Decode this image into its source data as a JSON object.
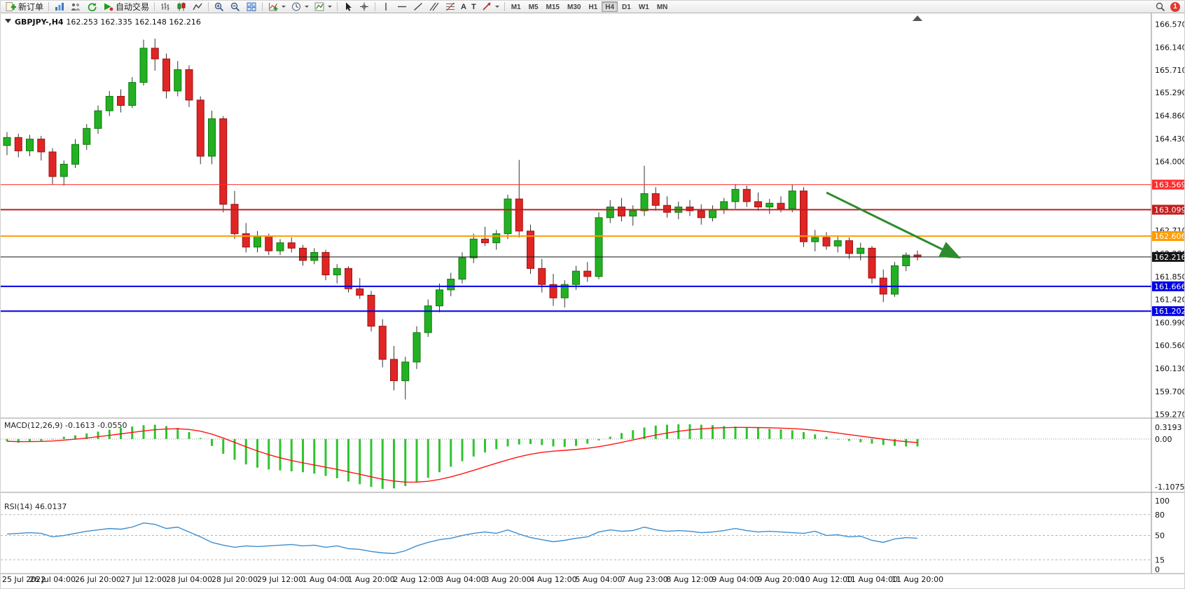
{
  "toolbar": {
    "new_order": "新订单",
    "autotrading": "自动交易",
    "text_tool": "A",
    "label_tool": "T",
    "timeframes": [
      "M1",
      "M5",
      "M15",
      "M30",
      "H1",
      "H4",
      "D1",
      "W1",
      "MN"
    ],
    "active_timeframe": "H4",
    "notification_count": "1"
  },
  "chart": {
    "symbol_tf": "GBPJPY-,H4",
    "ohlc": "162.253 162.335 162.148 162.216",
    "open": "162.253",
    "high": "162.335",
    "low": "162.148",
    "close": "162.216"
  },
  "chart_data": {
    "type": "candlestick",
    "symbol": "GBPJPY-",
    "timeframe": "H4",
    "title": "GBPJPY-,H4 162.253 162.335 162.148 162.216",
    "grid": false,
    "bull_color": "#23b123",
    "bear_color": "#e02525",
    "wick_color": "#333333",
    "candles_per_label": 4,
    "time_labels": [
      "25 Jul 2022",
      "26 Jul 04:00",
      "26 Jul 20:00",
      "27 Jul 12:00",
      "28 Jul 04:00",
      "28 Jul 20:00",
      "29 Jul 12:00",
      "1 Aug 04:00",
      "1 Aug 20:00",
      "2 Aug 12:00",
      "3 Aug 04:00",
      "3 Aug 20:00",
      "4 Aug 12:00",
      "5 Aug 04:00",
      "7 Aug 23:00",
      "8 Aug 12:00",
      "9 Aug 04:00",
      "9 Aug 20:00",
      "10 Aug 12:00",
      "11 Aug 04:00",
      "11 Aug 20:00"
    ],
    "price_axis": {
      "max": 166.57,
      "min": 159.27,
      "step": 0.43,
      "tick_labels": [
        "166.570",
        "166.140",
        "165.710",
        "165.290",
        "164.860",
        "164.430",
        "164.000",
        "163.570",
        "163.140",
        "162.710",
        "162.280",
        "161.850",
        "161.420",
        "160.990",
        "160.560",
        "160.130",
        "159.700",
        "159.270"
      ]
    },
    "candles": [
      [
        164.3,
        164.55,
        164.12,
        164.45
      ],
      [
        164.45,
        164.52,
        164.08,
        164.2
      ],
      [
        164.2,
        164.5,
        164.1,
        164.42
      ],
      [
        164.42,
        164.48,
        164.02,
        164.18
      ],
      [
        164.18,
        164.25,
        163.57,
        163.72
      ],
      [
        163.72,
        164.02,
        163.55,
        163.95
      ],
      [
        163.95,
        164.42,
        163.88,
        164.32
      ],
      [
        164.32,
        164.7,
        164.22,
        164.62
      ],
      [
        164.62,
        165.05,
        164.52,
        164.95
      ],
      [
        164.95,
        165.32,
        164.85,
        165.22
      ],
      [
        165.22,
        165.35,
        164.92,
        165.05
      ],
      [
        165.05,
        165.58,
        165.0,
        165.48
      ],
      [
        165.48,
        166.28,
        165.42,
        166.12
      ],
      [
        166.12,
        166.3,
        165.7,
        165.92
      ],
      [
        165.92,
        166.02,
        165.18,
        165.32
      ],
      [
        165.32,
        165.88,
        165.22,
        165.72
      ],
      [
        165.72,
        165.8,
        165.02,
        165.15
      ],
      [
        165.15,
        165.22,
        163.95,
        164.1
      ],
      [
        164.1,
        164.95,
        163.95,
        164.8
      ],
      [
        164.8,
        164.85,
        163.05,
        163.2
      ],
      [
        163.2,
        163.45,
        162.55,
        162.65
      ],
      [
        162.65,
        162.85,
        162.3,
        162.4
      ],
      [
        162.4,
        162.7,
        162.3,
        162.6
      ],
      [
        162.6,
        162.65,
        162.25,
        162.33
      ],
      [
        162.33,
        162.55,
        162.25,
        162.48
      ],
      [
        162.48,
        162.58,
        162.3,
        162.38
      ],
      [
        162.38,
        162.44,
        162.05,
        162.15
      ],
      [
        162.15,
        162.38,
        162.08,
        162.3
      ],
      [
        162.3,
        162.35,
        161.78,
        161.88
      ],
      [
        161.88,
        162.08,
        161.72,
        162.0
      ],
      [
        162.0,
        162.04,
        161.55,
        161.62
      ],
      [
        161.62,
        161.82,
        161.43,
        161.5
      ],
      [
        161.5,
        161.58,
        160.82,
        160.92
      ],
      [
        160.92,
        161.05,
        160.15,
        160.3
      ],
      [
        160.3,
        160.55,
        159.72,
        159.9
      ],
      [
        159.9,
        160.35,
        159.55,
        160.25
      ],
      [
        160.25,
        160.92,
        160.12,
        160.8
      ],
      [
        160.8,
        161.42,
        160.72,
        161.3
      ],
      [
        161.3,
        161.72,
        161.18,
        161.6
      ],
      [
        161.6,
        161.92,
        161.48,
        161.8
      ],
      [
        161.8,
        162.3,
        161.72,
        162.2
      ],
      [
        162.2,
        162.65,
        162.1,
        162.55
      ],
      [
        162.55,
        162.78,
        162.42,
        162.48
      ],
      [
        162.48,
        162.72,
        162.35,
        162.65
      ],
      [
        162.65,
        163.38,
        162.55,
        163.3
      ],
      [
        163.3,
        164.03,
        162.58,
        162.7
      ],
      [
        162.7,
        162.82,
        161.9,
        162.0
      ],
      [
        162.0,
        162.18,
        161.55,
        161.7
      ],
      [
        161.7,
        161.9,
        161.3,
        161.45
      ],
      [
        161.45,
        161.78,
        161.27,
        161.7
      ],
      [
        161.7,
        162.05,
        161.6,
        161.95
      ],
      [
        161.95,
        162.12,
        161.75,
        161.85
      ],
      [
        161.85,
        163.05,
        161.8,
        162.95
      ],
      [
        162.95,
        163.28,
        162.85,
        163.15
      ],
      [
        163.15,
        163.32,
        162.88,
        162.98
      ],
      [
        162.98,
        163.18,
        162.8,
        163.08
      ],
      [
        163.08,
        163.92,
        162.98,
        163.4
      ],
      [
        163.4,
        163.52,
        163.08,
        163.18
      ],
      [
        163.18,
        163.35,
        162.95,
        163.05
      ],
      [
        163.05,
        163.25,
        162.92,
        163.15
      ],
      [
        163.15,
        163.28,
        162.98,
        163.08
      ],
      [
        163.08,
        163.2,
        162.82,
        162.95
      ],
      [
        162.95,
        163.18,
        162.88,
        163.1
      ],
      [
        163.1,
        163.32,
        163.02,
        163.25
      ],
      [
        163.25,
        163.58,
        163.12,
        163.48
      ],
      [
        163.48,
        163.55,
        163.15,
        163.25
      ],
      [
        163.25,
        163.42,
        163.08,
        163.15
      ],
      [
        163.15,
        163.3,
        163.02,
        163.22
      ],
      [
        163.22,
        163.35,
        163.05,
        163.12
      ],
      [
        163.12,
        163.57,
        163.05,
        163.45
      ],
      [
        163.45,
        163.52,
        162.4,
        162.5
      ],
      [
        162.5,
        162.72,
        162.32,
        162.58
      ],
      [
        162.58,
        162.68,
        162.35,
        162.42
      ],
      [
        162.42,
        162.62,
        162.3,
        162.52
      ],
      [
        162.52,
        162.58,
        162.18,
        162.28
      ],
      [
        162.28,
        162.48,
        162.15,
        162.38
      ],
      [
        162.38,
        162.42,
        161.72,
        161.82
      ],
      [
        161.82,
        161.98,
        161.37,
        161.52
      ],
      [
        161.52,
        162.12,
        161.47,
        162.05
      ],
      [
        162.05,
        162.3,
        161.95,
        162.25
      ],
      [
        162.253,
        162.335,
        162.148,
        162.216
      ]
    ],
    "hlines": [
      {
        "price": 163.569,
        "label": "163.569",
        "color": "#ff2d2d",
        "width": 1
      },
      {
        "price": 163.099,
        "label": "163.099",
        "color": "#c21d1d",
        "width": 2
      },
      {
        "price": 162.606,
        "label": "162.606",
        "color": "#ff9c00",
        "width": 2
      },
      {
        "price": 162.216,
        "label": "162.216",
        "color": "#151515",
        "width": 1
      },
      {
        "price": 161.666,
        "label": "161.666",
        "color": "#0000e6",
        "width": 2
      },
      {
        "price": 161.202,
        "label": "161.202",
        "color": "#0000e6",
        "width": 2
      }
    ],
    "trend_arrow": {
      "from_candle": 72,
      "from_price": 163.42,
      "to_candle": 83.5,
      "to_price": 162.22,
      "color": "#2e8b2e"
    },
    "macd": {
      "label": "MACD(12,26,9)",
      "main_value": "-0.1613",
      "signal_value": "-0.0550",
      "axis_labels": [
        "0.3193",
        "0.00",
        "-1.1075"
      ],
      "axis_max": 0.3193,
      "axis_min": -1.1075,
      "histogram_color": "#2fc42f",
      "signal_color": "#ff1414",
      "values": [
        -0.05,
        -0.08,
        -0.06,
        -0.04,
        0.0,
        0.05,
        0.08,
        0.12,
        0.16,
        0.2,
        0.24,
        0.27,
        0.3,
        0.31,
        0.28,
        0.24,
        0.15,
        0.02,
        -0.15,
        -0.32,
        -0.45,
        -0.55,
        -0.62,
        -0.66,
        -0.68,
        -0.7,
        -0.72,
        -0.75,
        -0.8,
        -0.85,
        -0.92,
        -0.98,
        -1.04,
        -1.08,
        -1.07,
        -1.02,
        -0.94,
        -0.84,
        -0.72,
        -0.6,
        -0.48,
        -0.38,
        -0.29,
        -0.22,
        -0.16,
        -0.12,
        -0.11,
        -0.13,
        -0.16,
        -0.17,
        -0.15,
        -0.1,
        -0.03,
        0.05,
        0.13,
        0.19,
        0.25,
        0.29,
        0.31,
        0.32,
        0.32,
        0.31,
        0.3,
        0.28,
        0.27,
        0.25,
        0.24,
        0.22,
        0.21,
        0.19,
        0.15,
        0.1,
        0.05,
        0.0,
        -0.04,
        -0.07,
        -0.1,
        -0.13,
        -0.15,
        -0.16,
        -0.1613
      ]
    },
    "rsi": {
      "label": "RSI(14)",
      "value": "46.0137",
      "axis_labels": [
        "100",
        "80",
        "50",
        "15",
        "0"
      ],
      "axis_values": [
        100,
        80,
        50,
        15,
        0
      ],
      "levels": [
        80,
        50,
        15
      ],
      "line_color": "#3e8ed0",
      "values": [
        52,
        53,
        54,
        53,
        48,
        50,
        53,
        56,
        58,
        60,
        59,
        62,
        68,
        66,
        60,
        62,
        55,
        48,
        40,
        36,
        33,
        35,
        34,
        35,
        36,
        37,
        35,
        36,
        33,
        35,
        31,
        30,
        27,
        25,
        24,
        28,
        35,
        40,
        44,
        46,
        50,
        53,
        55,
        53,
        58,
        52,
        47,
        44,
        41,
        43,
        46,
        48,
        55,
        58,
        56,
        57,
        62,
        58,
        56,
        57,
        56,
        54,
        55,
        57,
        60,
        57,
        55,
        56,
        55,
        54,
        53,
        56,
        50,
        51,
        48,
        49,
        43,
        40,
        45,
        47,
        46.01
      ]
    }
  }
}
